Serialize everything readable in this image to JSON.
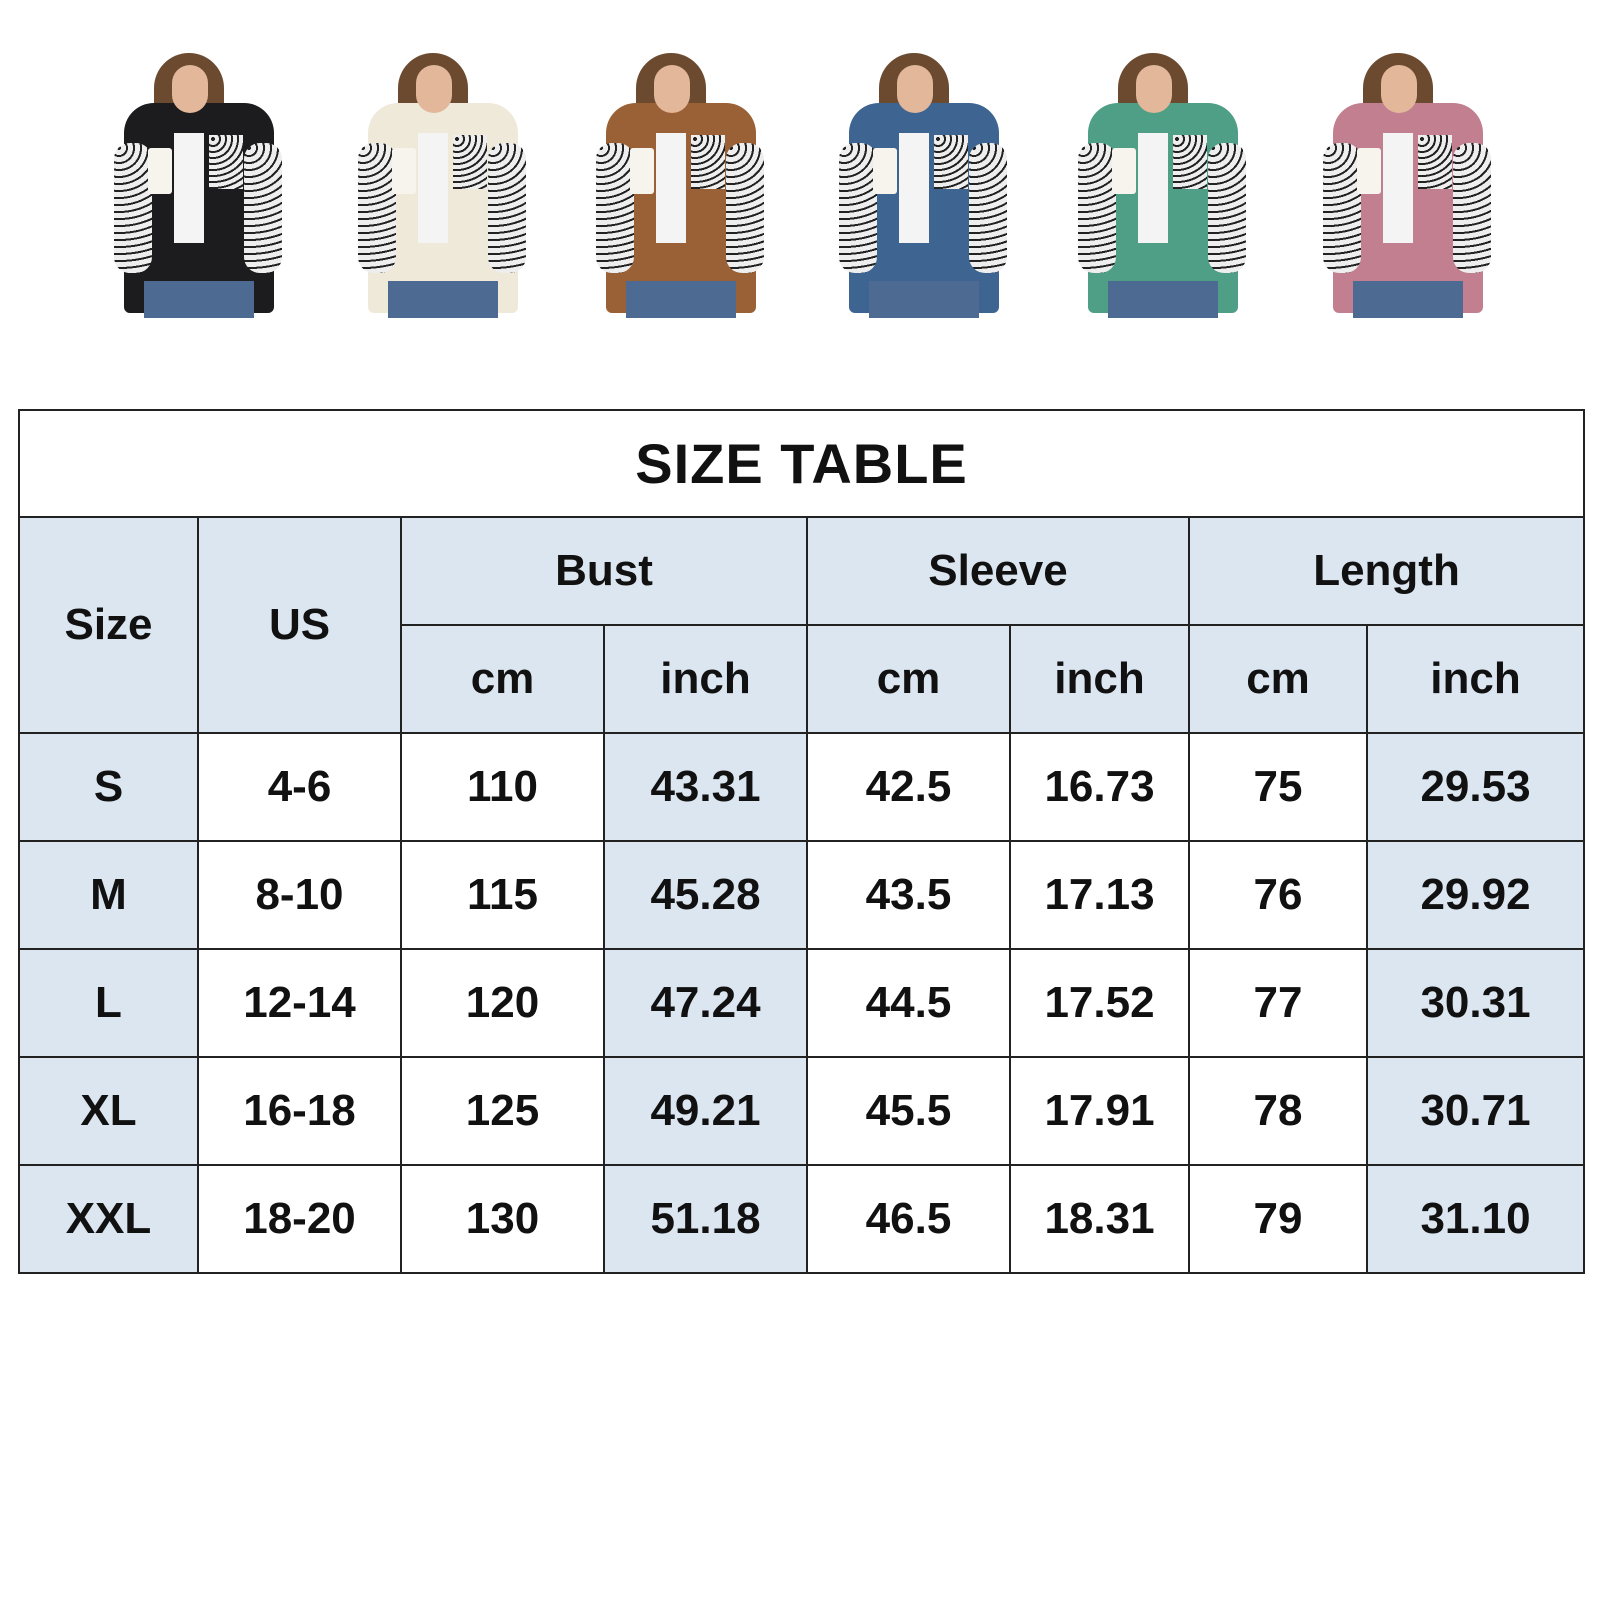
{
  "thumbnails": [
    {
      "color": "#1c1c1e",
      "name": "black"
    },
    {
      "color": "#efe9da",
      "name": "cream"
    },
    {
      "color": "#9a6137",
      "name": "brown"
    },
    {
      "color": "#3e6592",
      "name": "blue"
    },
    {
      "color": "#4f9f86",
      "name": "green"
    },
    {
      "color": "#c27f90",
      "name": "pink"
    }
  ],
  "shade_color": "#dce6f1",
  "table": {
    "title": "SIZE TABLE",
    "headers": {
      "size": "Size",
      "us": "US",
      "bust": "Bust",
      "sleeve": "Sleeve",
      "length": "Length",
      "cm": "cm",
      "inch": "inch"
    },
    "rows": [
      [
        "S",
        "4-6",
        "110",
        "43.31",
        "42.5",
        "16.73",
        "75",
        "29.53"
      ],
      [
        "M",
        "8-10",
        "115",
        "45.28",
        "43.5",
        "17.13",
        "76",
        "29.92"
      ],
      [
        "L",
        "12-14",
        "120",
        "47.24",
        "44.5",
        "17.52",
        "77",
        "30.31"
      ],
      [
        "XL",
        "16-18",
        "125",
        "49.21",
        "45.5",
        "17.91",
        "78",
        "30.71"
      ],
      [
        "XXL",
        "18-20",
        "130",
        "51.18",
        "46.5",
        "18.31",
        "79",
        "31.10"
      ]
    ]
  }
}
